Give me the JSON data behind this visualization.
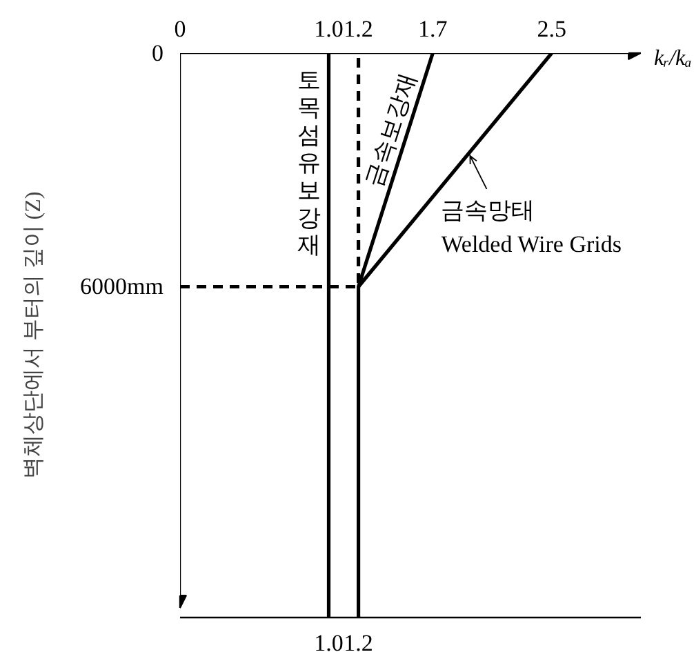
{
  "chart_data": {
    "type": "line",
    "ylabel": "벽체상단에서 부터의 깊이 (Z)",
    "x2label": "kᵣ/kₐ",
    "xlim": [
      0,
      3.1
    ],
    "xticks": [
      {
        "value": 1.0,
        "label": "1.0"
      },
      1.2
    ],
    "x2lim": [
      0,
      3.1
    ],
    "x2ticks": [
      0,
      {
        "value": 1.0,
        "label": "1.0"
      },
      1.2,
      1.7,
      2.5
    ],
    "ylim": [
      14500,
      0
    ],
    "yticks": [
      0,
      {
        "value": 6000,
        "label": "6000mm"
      }
    ],
    "grid": false,
    "marker": "none",
    "line_style": "solid",
    "series": [
      {
        "name": "토목섬유보강재",
        "color": "#000000",
        "x": [
          1.0,
          1.0,
          1.0
        ],
        "values": [
          0,
          6000,
          14500
        ]
      },
      {
        "name": "금속보강재",
        "color": "#000000",
        "x": [
          1.7,
          1.2,
          1.2
        ],
        "values": [
          0,
          6000,
          14500
        ]
      },
      {
        "name": "금속망태\nWelded Wire Grids",
        "color": "#000000",
        "x": [
          2.5,
          1.2
        ],
        "values": [
          0,
          6000
        ]
      },
      {
        "color": "#000000",
        "line_style": "dashed",
        "x": [
          0,
          1.2,
          1.2
        ],
        "values": [
          6000,
          6000,
          0
        ]
      }
    ]
  }
}
